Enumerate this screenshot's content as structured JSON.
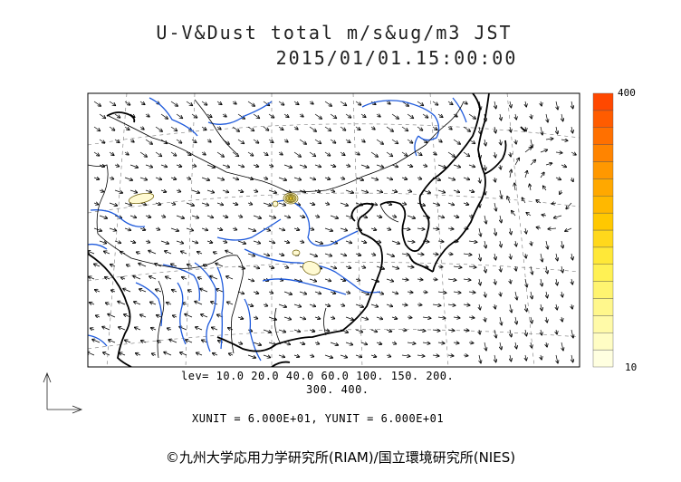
{
  "title": {
    "line1": "U-V&Dust total m/s&ug/m3 JST",
    "line2": "2015/01/01.15:00:00"
  },
  "contour_levels": {
    "line1": "lev= 10.0 20.0 40.0 60.0 100. 150. 200.",
    "line2": "300. 400."
  },
  "units": "XUNIT = 6.000E+01, YUNIT = 6.000E+01",
  "colorbar": {
    "max_label": "400",
    "min_label": "10",
    "colors": [
      "#ffffe0",
      "#fffdc4",
      "#fffaa8",
      "#fff78c",
      "#fff470",
      "#fff154",
      "#ffe838",
      "#ffd81c",
      "#ffc800",
      "#ffb800",
      "#ffa800",
      "#ff9800",
      "#ff8400",
      "#ff7000",
      "#ff5c00",
      "#ff4800"
    ]
  },
  "copyright": "©九州大学応用力学研究所(RIAM)/国立環境研究所(NIES)",
  "colors": {
    "river": "#1e5adc",
    "coast": "#000000",
    "dust_fill": "#fffad2",
    "dust_line": "#6b5a00"
  }
}
